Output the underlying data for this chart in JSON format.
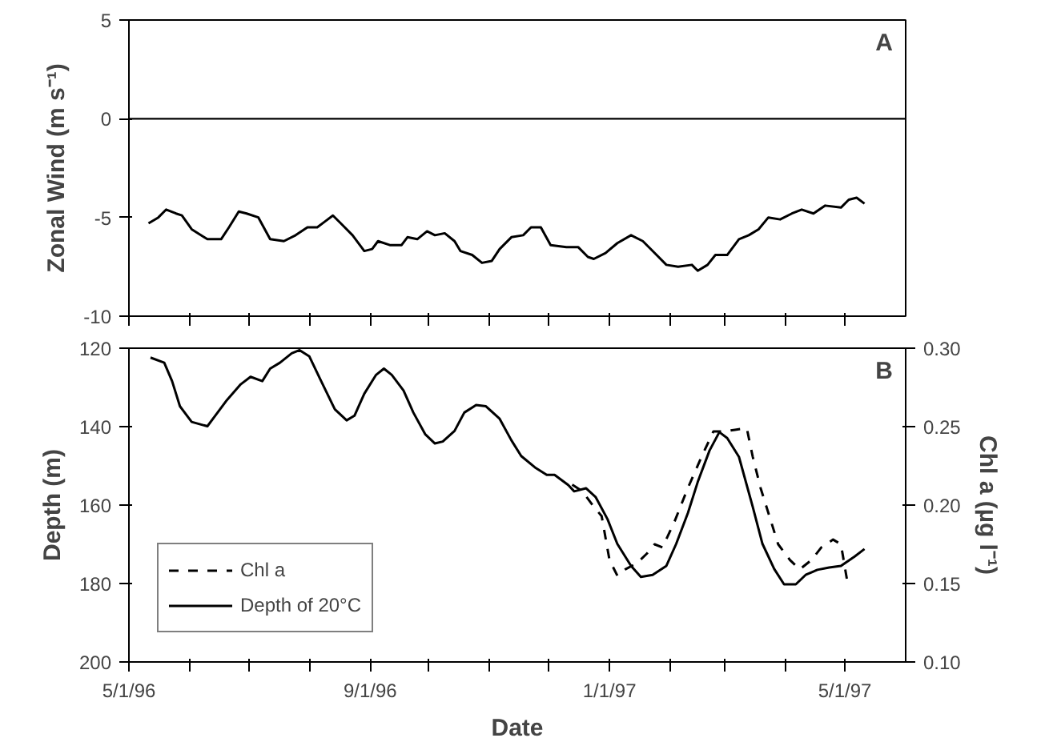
{
  "chart_data": [
    {
      "type": "line",
      "ylabel": "Zonal Wind (m s⁻¹)",
      "annotations": [
        "A"
      ],
      "xlim": [
        "1996-05-01",
        "1997-06-01"
      ],
      "ylim": [
        -10,
        5
      ],
      "yticks": [
        -10,
        -5,
        0,
        5
      ],
      "xticks": [
        {
          "value": "1996-05-01",
          "label": null
        },
        {
          "value": "1996-06-01",
          "label": null
        },
        {
          "value": "1996-07-01",
          "label": null
        },
        {
          "value": "1996-08-01",
          "label": null
        },
        {
          "value": "1996-09-01",
          "label": null
        },
        {
          "value": "1996-10-01",
          "label": null
        },
        {
          "value": "1996-11-01",
          "label": null
        },
        {
          "value": "1996-12-01",
          "label": null
        },
        {
          "value": "1997-01-01",
          "label": null
        },
        {
          "value": "1997-02-01",
          "label": null
        },
        {
          "value": "1997-03-01",
          "label": null
        },
        {
          "value": "1997-04-01",
          "label": null
        },
        {
          "value": "1997-05-01",
          "label": null
        }
      ],
      "tick_labels": "y",
      "grid": false,
      "legend": false,
      "ref_lines": [
        {
          "axis": "y",
          "value": 0,
          "color": "#000000"
        }
      ],
      "series": [
        {
          "color": "#000000",
          "line_style": "solid",
          "x": [
            "1996-05-11",
            "1996-05-16",
            "1996-05-20",
            "1996-05-25",
            "1996-05-28",
            "1996-06-02",
            "1996-06-10",
            "1996-06-17",
            "1996-06-21",
            "1996-06-26",
            "1996-06-30",
            "1996-07-06",
            "1996-07-12",
            "1996-07-19",
            "1996-07-25",
            "1996-07-31",
            "1996-08-05",
            "1996-08-09",
            "1996-08-13",
            "1996-08-17",
            "1996-08-23",
            "1996-08-29",
            "1996-09-02",
            "1996-09-05",
            "1996-09-11",
            "1996-09-17",
            "1996-09-20",
            "1996-09-25",
            "1996-09-30",
            "1996-10-04",
            "1996-10-09",
            "1996-10-14",
            "1996-10-17",
            "1996-10-23",
            "1996-10-28",
            "1996-11-02",
            "1996-11-06",
            "1996-11-12",
            "1996-11-18",
            "1996-11-22",
            "1996-11-27",
            "1996-12-02",
            "1996-12-10",
            "1996-12-16",
            "1996-12-21",
            "1996-12-24",
            "1996-12-30",
            "1997-01-05",
            "1997-01-12",
            "1997-01-18",
            "1997-01-24",
            "1997-01-30",
            "1997-02-05",
            "1997-02-12",
            "1997-02-15",
            "1997-02-20",
            "1997-02-24",
            "1997-03-02",
            "1997-03-08",
            "1997-03-13",
            "1997-03-18",
            "1997-03-23",
            "1997-03-29",
            "1997-04-04",
            "1997-04-09",
            "1997-04-15",
            "1997-04-21",
            "1997-04-29",
            "1997-05-03",
            "1997-05-07",
            "1997-05-11"
          ],
          "values": [
            -5.3,
            -5.0,
            -4.6,
            -4.8,
            -4.9,
            -5.6,
            -6.1,
            -6.1,
            -5.5,
            -4.7,
            -4.8,
            -5.0,
            -6.1,
            -6.2,
            -5.9,
            -5.5,
            -5.5,
            -5.2,
            -4.9,
            -5.3,
            -5.9,
            -6.7,
            -6.6,
            -6.2,
            -6.4,
            -6.4,
            -6.0,
            -6.1,
            -5.7,
            -5.9,
            -5.8,
            -6.2,
            -6.7,
            -6.9,
            -7.3,
            -7.2,
            -6.6,
            -6.0,
            -5.9,
            -5.5,
            -5.5,
            -6.4,
            -6.5,
            -6.5,
            -7.0,
            -7.1,
            -6.8,
            -6.3,
            -5.9,
            -6.2,
            -6.8,
            -7.4,
            -7.5,
            -7.4,
            -7.7,
            -7.4,
            -6.9,
            -6.9,
            -6.1,
            -5.9,
            -5.6,
            -5.0,
            -5.1,
            -4.8,
            -4.6,
            -4.8,
            -4.4,
            -4.5,
            -4.1,
            -4.0,
            -4.3
          ]
        }
      ]
    },
    {
      "type": "line",
      "xlabel": "Date",
      "ylabel": "Depth (m)",
      "y2label": "Chl a (µg l⁻¹)",
      "annotations": [
        "B"
      ],
      "xlim": [
        "1996-05-01",
        "1997-06-01"
      ],
      "ylim": [
        200,
        120
      ],
      "yticks": [
        120,
        140,
        160,
        180,
        200
      ],
      "y2lim": [
        0.1,
        0.3
      ],
      "y2ticks": [
        {
          "value": 0.1,
          "label": "0.10"
        },
        {
          "value": 0.15,
          "label": "0.15"
        },
        {
          "value": 0.2,
          "label": "0.20"
        },
        {
          "value": 0.25,
          "label": "0.25"
        },
        {
          "value": 0.3,
          "label": "0.30"
        }
      ],
      "xticks": [
        {
          "value": "1996-05-01",
          "label": "5/1/96"
        },
        {
          "value": "1996-06-01",
          "label": null
        },
        {
          "value": "1996-07-01",
          "label": null
        },
        {
          "value": "1996-08-01",
          "label": null
        },
        {
          "value": "1996-09-01",
          "label": "9/1/96"
        },
        {
          "value": "1996-10-01",
          "label": null
        },
        {
          "value": "1996-11-01",
          "label": null
        },
        {
          "value": "1996-12-01",
          "label": null
        },
        {
          "value": "1997-01-01",
          "label": "1/1/97"
        },
        {
          "value": "1997-02-01",
          "label": null
        },
        {
          "value": "1997-03-01",
          "label": null
        },
        {
          "value": "1997-04-01",
          "label": null
        },
        {
          "value": "1997-05-01",
          "label": "5/1/97"
        }
      ],
      "grid": false,
      "legend": "bottom left",
      "series": [
        {
          "name": "Chl a",
          "color": "#000000",
          "line_style": "dashed",
          "axis": "y2",
          "x": [
            "1996-12-13",
            "1996-12-18",
            "1996-12-24",
            "1996-12-28",
            "1997-01-01",
            "1997-01-05",
            "1997-01-09",
            "1997-01-15",
            "1997-01-20",
            "1997-01-24",
            "1997-01-28",
            "1997-02-03",
            "1997-02-10",
            "1997-02-17",
            "1997-02-23",
            "1997-03-01",
            "1997-03-06",
            "1997-03-12",
            "1997-03-15",
            "1997-03-19",
            "1997-03-23",
            "1997-03-28",
            "1997-04-03",
            "1997-04-08",
            "1997-04-14",
            "1997-04-19",
            "1997-04-25",
            "1997-04-29",
            "1997-05-02"
          ],
          "values": [
            0.213,
            0.209,
            0.199,
            0.193,
            0.165,
            0.155,
            0.159,
            0.163,
            0.169,
            0.175,
            0.173,
            0.189,
            0.211,
            0.231,
            0.247,
            0.247,
            0.248,
            0.249,
            0.231,
            0.211,
            0.195,
            0.175,
            0.165,
            0.159,
            0.165,
            0.173,
            0.178,
            0.175,
            0.153
          ]
        },
        {
          "name": "Depth of 20°C",
          "color": "#000000",
          "line_style": "solid",
          "x": [
            "1996-05-12",
            "1996-05-19",
            "1996-05-23",
            "1996-05-27",
            "1996-06-02",
            "1996-06-10",
            "1996-06-14",
            "1996-06-20",
            "1996-06-27",
            "1996-07-02",
            "1996-07-08",
            "1996-07-12",
            "1996-07-17",
            "1996-07-23",
            "1996-07-27",
            "1996-08-01",
            "1996-08-07",
            "1996-08-14",
            "1996-08-20",
            "1996-08-24",
            "1996-08-29",
            "1996-09-04",
            "1996-09-08",
            "1996-09-12",
            "1996-09-18",
            "1996-09-23",
            "1996-09-29",
            "1996-10-04",
            "1996-10-08",
            "1996-10-14",
            "1996-10-19",
            "1996-10-25",
            "1996-10-30",
            "1996-11-06",
            "1996-11-12",
            "1996-11-17",
            "1996-11-24",
            "1996-11-30",
            "1996-12-04",
            "1996-12-11",
            "1996-12-14",
            "1996-12-20",
            "1996-12-25",
            "1996-12-31",
            "1997-01-05",
            "1997-01-12",
            "1997-01-17",
            "1997-01-23",
            "1997-01-30",
            "1997-02-04",
            "1997-02-10",
            "1997-02-15",
            "1997-02-21",
            "1997-02-26",
            "1997-03-02",
            "1997-03-08",
            "1997-03-15",
            "1997-03-20",
            "1997-03-26",
            "1997-03-31",
            "1997-04-06",
            "1997-04-11",
            "1997-04-17",
            "1997-04-23",
            "1997-04-29",
            "1997-05-06",
            "1997-05-11"
          ],
          "values": [
            122.4,
            123.7,
            128.4,
            134.8,
            138.8,
            139.9,
            137.2,
            133.2,
            129.2,
            127.3,
            128.4,
            125.2,
            123.7,
            121.3,
            120.5,
            122.1,
            128.4,
            135.6,
            138.4,
            137.2,
            131.6,
            126.8,
            125.2,
            126.8,
            130.8,
            136.4,
            141.9,
            144.3,
            143.8,
            141.1,
            136.4,
            134.5,
            134.8,
            138.0,
            143.5,
            147.5,
            150.4,
            152.3,
            152.3,
            154.9,
            156.5,
            155.7,
            158.0,
            163.6,
            169.9,
            175.5,
            178.3,
            177.8,
            175.5,
            169.9,
            162.0,
            154.1,
            146.1,
            141.4,
            142.9,
            147.7,
            160.4,
            169.9,
            176.3,
            180.2,
            180.2,
            177.8,
            176.5,
            175.9,
            175.5,
            173.1,
            171.2
          ]
        }
      ]
    }
  ]
}
